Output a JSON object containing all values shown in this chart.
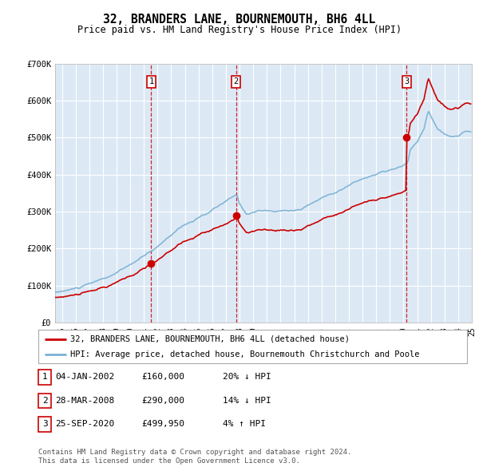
{
  "title": "32, BRANDERS LANE, BOURNEMOUTH, BH6 4LL",
  "subtitle": "Price paid vs. HM Land Registry's House Price Index (HPI)",
  "ylim": [
    0,
    700000
  ],
  "yticks": [
    0,
    100000,
    200000,
    300000,
    400000,
    500000,
    600000,
    700000
  ],
  "ytick_labels": [
    "£0",
    "£100K",
    "£200K",
    "£300K",
    "£400K",
    "£500K",
    "£600K",
    "£700K"
  ],
  "sale_dates": [
    2002.04,
    2008.24,
    2020.73
  ],
  "sale_prices": [
    160000,
    290000,
    499950
  ],
  "sale_labels": [
    "1",
    "2",
    "3"
  ],
  "sale_vline_color": "#cc0000",
  "sale_marker_color": "#cc0000",
  "hpi_line_color": "#7ab0d4",
  "price_line_color": "#cc0000",
  "legend_house": "32, BRANDERS LANE, BOURNEMOUTH, BH6 4LL (detached house)",
  "legend_hpi": "HPI: Average price, detached house, Bournemouth Christchurch and Poole",
  "table_rows": [
    {
      "num": "1",
      "date": "04-JAN-2002",
      "price": "£160,000",
      "change": "20% ↓ HPI"
    },
    {
      "num": "2",
      "date": "28-MAR-2008",
      "price": "£290,000",
      "change": "14% ↓ HPI"
    },
    {
      "num": "3",
      "date": "25-SEP-2020",
      "price": "£499,950",
      "change": "4% ↑ HPI"
    }
  ],
  "footer": "Contains HM Land Registry data © Crown copyright and database right 2024.\nThis data is licensed under the Open Government Licence v3.0.",
  "bg_color": "#ffffff",
  "plot_bg_color": "#dce9f5",
  "grid_color": "#ffffff",
  "xmin": 1995.0,
  "xmax": 2025.5
}
